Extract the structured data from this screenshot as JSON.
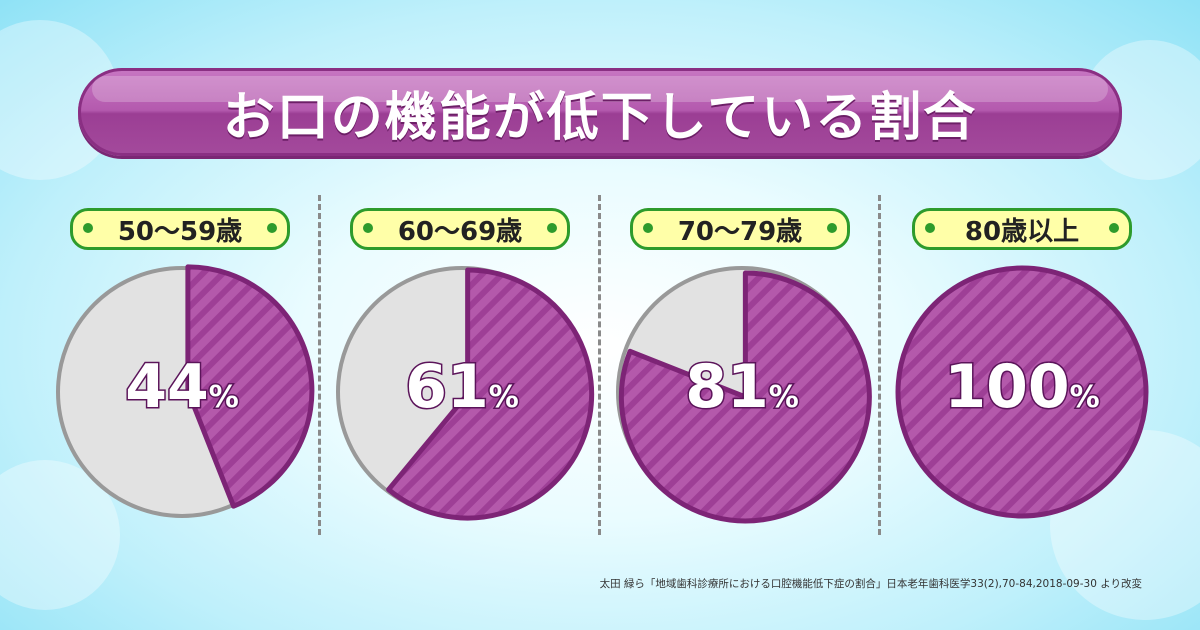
{
  "title": "お口の機能が低下している割合",
  "colors": {
    "purple": "#9e3f96",
    "purple_light": "#b459ab",
    "gray": "#e2e2e2",
    "gray_border": "#999999",
    "pill_fill": "#ffffa8",
    "pill_border": "#2e9b2c"
  },
  "chart_data": {
    "type": "pie",
    "unit": "%",
    "panels": [
      {
        "label": "50〜59歳",
        "value": 44
      },
      {
        "label": "60〜69歳",
        "value": 61
      },
      {
        "label": "70〜79歳",
        "value": 81
      },
      {
        "label": "80歳以上",
        "value": 100
      }
    ]
  },
  "display": {
    "pct_labels": [
      "44",
      "61",
      "81",
      "100"
    ],
    "unit": "%"
  },
  "source": "太田 緑ら「地域歯科診療所における口腔機能低下症の割合」日本老年歯科医学33(2),70-84,2018-09-30 より改変"
}
